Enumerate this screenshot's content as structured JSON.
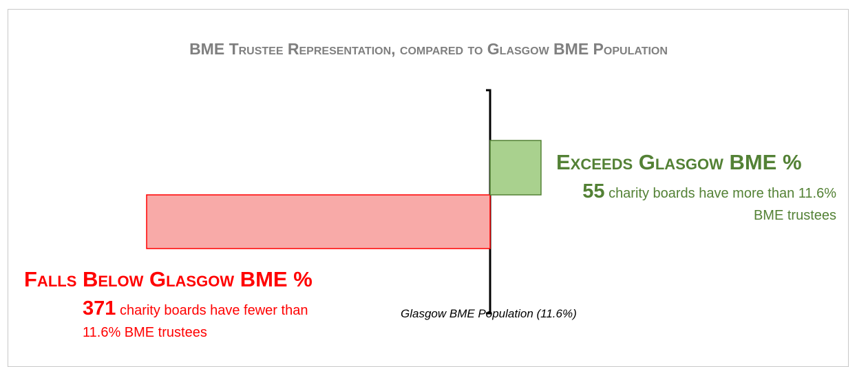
{
  "chart_data": {
    "type": "diverging-bar",
    "title": "BME Trustee Representation, compared to Glasgow BME Population",
    "categories": [
      "Falls Below Glasgow BME %",
      "Exceeds Glasgow BME %"
    ],
    "values": [
      371,
      55
    ],
    "directions": [
      "left",
      "right"
    ],
    "colors": [
      "#ff0000",
      "#538135"
    ],
    "fills": [
      "#f8aaa8",
      "#a9d18e"
    ],
    "annotations": [
      "charity boards have fewer than 11.6% BME trustees",
      "charity boards have more than 11.6% BME trustees"
    ],
    "reference_label": "Glasgow BME Population (11.6%)"
  }
}
